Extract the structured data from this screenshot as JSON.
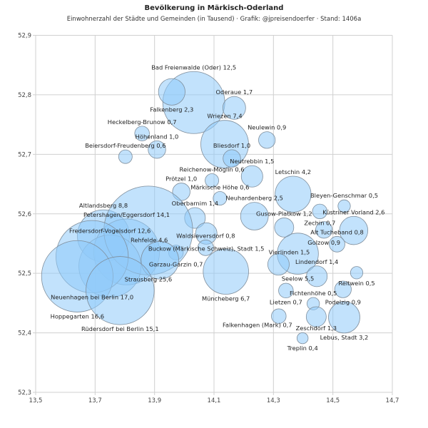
{
  "chart_data": {
    "type": "bubble",
    "title": "Bevölkerung in Märkisch-Oderland",
    "subtitle": "Einwohnerzahl der Städte und Gemeinden (in Tausend) · Grafik: @jpreisendoerfer · Stand: 1406a",
    "xlim": [
      13.5,
      14.7
    ],
    "ylim": [
      52.3,
      52.9
    ],
    "x_ticks": [
      13.5,
      13.7,
      13.9,
      14.1,
      14.3,
      14.5,
      14.7
    ],
    "y_ticks": [
      52.3,
      52.4,
      52.5,
      52.6,
      52.7,
      52.8,
      52.9
    ],
    "decimal_separator": ",",
    "grid": true,
    "bubble_color": "#90caf9",
    "size_encoding": "area proportional to population (thousands)",
    "points": [
      {
        "name": "Bad Freienwalde (Oder)",
        "x": 14.032,
        "y": 52.787,
        "value": 12.5,
        "label": "above"
      },
      {
        "name": "Falkenberg",
        "x": 13.958,
        "y": 52.805,
        "value": 2.3,
        "label": "above"
      },
      {
        "name": "Oderaue",
        "x": 14.168,
        "y": 52.778,
        "value": 1.7,
        "label": "above"
      },
      {
        "name": "Wriezen",
        "x": 14.136,
        "y": 52.717,
        "value": 7.4,
        "label": "above"
      },
      {
        "name": "Heckelberg-Brunow",
        "x": 13.858,
        "y": 52.735,
        "value": 0.7,
        "label": "above"
      },
      {
        "name": "Neulewin",
        "x": 14.278,
        "y": 52.724,
        "value": 0.9,
        "label": "above"
      },
      {
        "name": "Höhenland",
        "x": 13.908,
        "y": 52.708,
        "value": 1.0,
        "label": "above"
      },
      {
        "name": "Beiersdorf-Freudenberg",
        "x": 13.802,
        "y": 52.696,
        "value": 0.6,
        "label": "above"
      },
      {
        "name": "Bliesdorf",
        "x": 14.16,
        "y": 52.693,
        "value": 1.0,
        "label": "above"
      },
      {
        "name": "Neutrebbin",
        "x": 14.228,
        "y": 52.663,
        "value": 1.5,
        "label": "above"
      },
      {
        "name": "Reichenow-Möglin",
        "x": 14.093,
        "y": 52.656,
        "value": 0.6,
        "label": "above"
      },
      {
        "name": "Prötzel",
        "x": 13.99,
        "y": 52.637,
        "value": 1.0,
        "label": "above"
      },
      {
        "name": "Märkische Höhe",
        "x": 14.12,
        "y": 52.626,
        "value": 0.6,
        "label": "above"
      },
      {
        "name": "Letschin",
        "x": 14.366,
        "y": 52.633,
        "value": 4.2,
        "label": "above"
      },
      {
        "name": "Neuhardenberg",
        "x": 14.236,
        "y": 52.596,
        "value": 2.5,
        "label": "above"
      },
      {
        "name": "Bleyen-Genschmar",
        "x": 14.538,
        "y": 52.613,
        "value": 0.5,
        "label": "above"
      },
      {
        "name": "Oberbarnim",
        "x": 14.036,
        "y": 52.593,
        "value": 1.4,
        "label": "above"
      },
      {
        "name": "Altlandsberg",
        "x": 13.728,
        "y": 52.563,
        "value": 8.8,
        "label": "above"
      },
      {
        "name": "Petershagen/Eggersdorf",
        "x": 13.806,
        "y": 52.536,
        "value": 14.1,
        "label": "above"
      },
      {
        "name": "Küstriner Vorland",
        "x": 14.57,
        "y": 52.572,
        "value": 2.6,
        "label": "above"
      },
      {
        "name": "Buckow (Märkische Schweiz), Stadt",
        "x": 14.074,
        "y": 52.567,
        "value": 1.5,
        "label": "above"
      },
      {
        "name": "Gusow-Platkow",
        "x": 14.336,
        "y": 52.577,
        "value": 1.2,
        "label": "above"
      },
      {
        "name": "Zechin",
        "x": 14.456,
        "y": 52.604,
        "value": 0.7,
        "label": "below"
      },
      {
        "name": "Seelow",
        "x": 14.382,
        "y": 52.533,
        "value": 5.5,
        "label": "above"
      },
      {
        "name": "Fredersdorf-Vogelsdorf",
        "x": 13.75,
        "y": 52.512,
        "value": 12.6,
        "label": "above"
      },
      {
        "name": "Golzow",
        "x": 14.47,
        "y": 52.573,
        "value": 0.9,
        "label": "below"
      },
      {
        "name": "Waldsieversdorf",
        "x": 14.072,
        "y": 52.543,
        "value": 0.8,
        "label": "above"
      },
      {
        "name": "Garzau-Garzin",
        "x": 13.972,
        "y": 52.535,
        "value": 0.7,
        "label": "above"
      },
      {
        "name": "Vierlinden",
        "x": 14.317,
        "y": 52.515,
        "value": 1.5,
        "label": "above"
      },
      {
        "name": "Alt Tucheband",
        "x": 14.514,
        "y": 52.549,
        "value": 0.8,
        "label": "below"
      },
      {
        "name": "Lindendorf",
        "x": 14.446,
        "y": 52.495,
        "value": 1.4,
        "label": "above"
      },
      {
        "name": "Reitwein",
        "x": 14.58,
        "y": 52.501,
        "value": 0.5,
        "label": "above"
      },
      {
        "name": "Strausberg",
        "x": 13.879,
        "y": 52.572,
        "value": 25.6,
        "label": "below"
      },
      {
        "name": "Rehfelde",
        "x": 13.918,
        "y": 52.522,
        "value": 4.6,
        "label": "below"
      },
      {
        "name": "Neuenhagen bei Berlin",
        "x": 13.69,
        "y": 52.528,
        "value": 17.0,
        "label": "below"
      },
      {
        "name": "Lietzen",
        "x": 14.342,
        "y": 52.471,
        "value": 0.7,
        "label": "above"
      },
      {
        "name": "Podelzig",
        "x": 14.534,
        "y": 52.473,
        "value": 0.9,
        "label": "above"
      },
      {
        "name": "Fichtenhöhe",
        "x": 14.434,
        "y": 52.449,
        "value": 0.5,
        "label": "above"
      },
      {
        "name": "Lebus, Stadt",
        "x": 14.538,
        "y": 52.426,
        "value": 3.2,
        "label": "above"
      },
      {
        "name": "Zeschdorf",
        "x": 14.444,
        "y": 52.427,
        "value": 1.3,
        "label": "above"
      },
      {
        "name": "Müncheberg",
        "x": 14.14,
        "y": 52.503,
        "value": 6.7,
        "label": "below"
      },
      {
        "name": "Hoppegarten",
        "x": 13.64,
        "y": 52.495,
        "value": 16.6,
        "label": "below"
      },
      {
        "name": "Falkenhagen (Mark)",
        "x": 14.318,
        "y": 52.428,
        "value": 0.7,
        "label": "below"
      },
      {
        "name": "Rüdersdorf bei Berlin",
        "x": 13.784,
        "y": 52.471,
        "value": 15.1,
        "label": "below"
      },
      {
        "name": "Treplin",
        "x": 14.398,
        "y": 52.391,
        "value": 0.4,
        "label": "below"
      }
    ]
  }
}
